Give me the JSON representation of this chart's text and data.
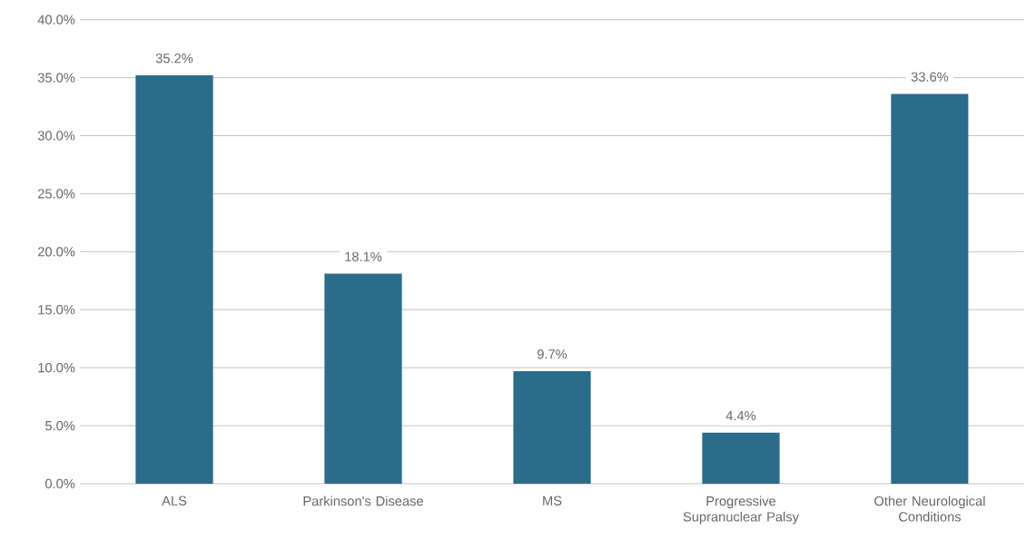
{
  "chart_data": {
    "type": "bar",
    "categories": [
      "ALS",
      "Parkinson's Disease",
      "MS",
      "Progressive Supranuclear Palsy",
      "Other Neurological Conditions"
    ],
    "values": [
      35.2,
      18.1,
      9.7,
      4.4,
      33.6
    ],
    "value_labels": [
      "35.2%",
      "18.1%",
      "9.7%",
      "4.4%",
      "33.6%"
    ],
    "color": "#2b6c8b",
    "ylim": [
      0,
      40
    ],
    "yticks": [
      {
        "value": 0,
        "label": "0.0%"
      },
      {
        "value": 5,
        "label": "5.0%"
      },
      {
        "value": 10,
        "label": "10.0%"
      },
      {
        "value": 15,
        "label": "15.0%"
      },
      {
        "value": 20,
        "label": "20.0%"
      },
      {
        "value": 25,
        "label": "25.0%"
      },
      {
        "value": 30,
        "label": "30.0%"
      },
      {
        "value": 35,
        "label": "35.0%"
      },
      {
        "value": 40,
        "label": "40.0%"
      }
    ],
    "grid": "y"
  }
}
